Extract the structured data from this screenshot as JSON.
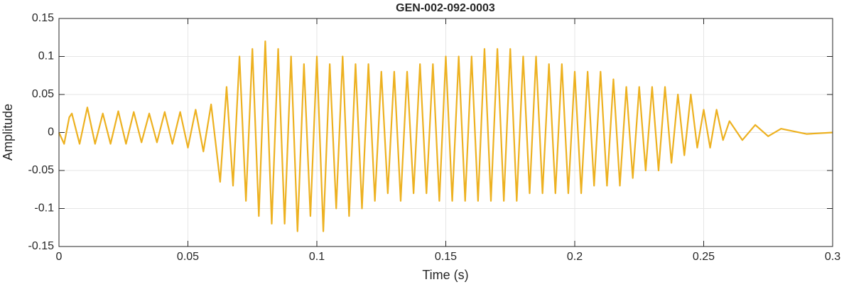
{
  "chart_data": {
    "type": "line",
    "title": "GEN-002-092-0003",
    "xlabel": "Time (s)",
    "ylabel": "Amplitude",
    "color": "#EDB120",
    "grid": true,
    "xlim": [
      0,
      0.3
    ],
    "ylim": [
      -0.15,
      0.15
    ],
    "xticks": [
      0,
      0.05,
      0.1,
      0.15,
      0.2,
      0.25,
      0.3
    ],
    "yticks": [
      -0.15,
      -0.1,
      -0.05,
      0,
      0.05,
      0.1,
      0.15
    ],
    "x": [
      0,
      0.002,
      0.004,
      0.005,
      0.008,
      0.011,
      0.014,
      0.017,
      0.02,
      0.023,
      0.026,
      0.029,
      0.032,
      0.035,
      0.038,
      0.041,
      0.044,
      0.047,
      0.05,
      0.053,
      0.056,
      0.059,
      0.0625,
      0.065,
      0.0675,
      0.07,
      0.0725,
      0.075,
      0.0775,
      0.08,
      0.0825,
      0.085,
      0.0875,
      0.09,
      0.0925,
      0.095,
      0.0975,
      0.1,
      0.1025,
      0.105,
      0.1075,
      0.11,
      0.1125,
      0.115,
      0.1175,
      0.12,
      0.1225,
      0.125,
      0.1275,
      0.13,
      0.1325,
      0.135,
      0.1375,
      0.14,
      0.1425,
      0.145,
      0.1475,
      0.15,
      0.1525,
      0.155,
      0.1575,
      0.16,
      0.1625,
      0.165,
      0.1675,
      0.17,
      0.1725,
      0.175,
      0.1775,
      0.18,
      0.1825,
      0.185,
      0.1875,
      0.19,
      0.1925,
      0.195,
      0.1975,
      0.2,
      0.2025,
      0.205,
      0.2075,
      0.21,
      0.2125,
      0.215,
      0.2175,
      0.22,
      0.2225,
      0.225,
      0.2275,
      0.23,
      0.2325,
      0.235,
      0.2375,
      0.24,
      0.2425,
      0.245,
      0.2475,
      0.25,
      0.2525,
      0.255,
      0.2575,
      0.26,
      0.265,
      0.27,
      0.275,
      0.28,
      0.29,
      0.3
    ],
    "values": [
      0,
      -0.015,
      0.02,
      0.025,
      -0.015,
      0.033,
      -0.015,
      0.025,
      -0.015,
      0.028,
      -0.015,
      0.027,
      -0.013,
      0.025,
      -0.013,
      0.027,
      -0.015,
      0.027,
      -0.02,
      0.03,
      -0.025,
      0.037,
      -0.065,
      0.06,
      -0.07,
      0.1,
      -0.09,
      0.11,
      -0.11,
      0.12,
      -0.12,
      0.11,
      -0.12,
      0.1,
      -0.13,
      0.09,
      -0.11,
      0.1,
      -0.13,
      0.09,
      -0.1,
      0.1,
      -0.11,
      0.09,
      -0.1,
      0.09,
      -0.09,
      0.08,
      -0.08,
      0.08,
      -0.09,
      0.08,
      -0.08,
      0.09,
      -0.08,
      0.09,
      -0.09,
      0.1,
      -0.09,
      0.1,
      -0.09,
      0.1,
      -0.09,
      0.11,
      -0.09,
      0.11,
      -0.09,
      0.11,
      -0.09,
      0.1,
      -0.08,
      0.1,
      -0.08,
      0.09,
      -0.08,
      0.09,
      -0.08,
      0.08,
      -0.08,
      0.08,
      -0.07,
      0.08,
      -0.07,
      0.07,
      -0.07,
      0.06,
      -0.06,
      0.06,
      -0.05,
      0.06,
      -0.05,
      0.06,
      -0.04,
      0.05,
      -0.03,
      0.05,
      -0.02,
      0.03,
      -0.02,
      0.03,
      -0.01,
      0.015,
      -0.01,
      0.01,
      -0.005,
      0.005,
      -0.002,
      0
    ]
  }
}
